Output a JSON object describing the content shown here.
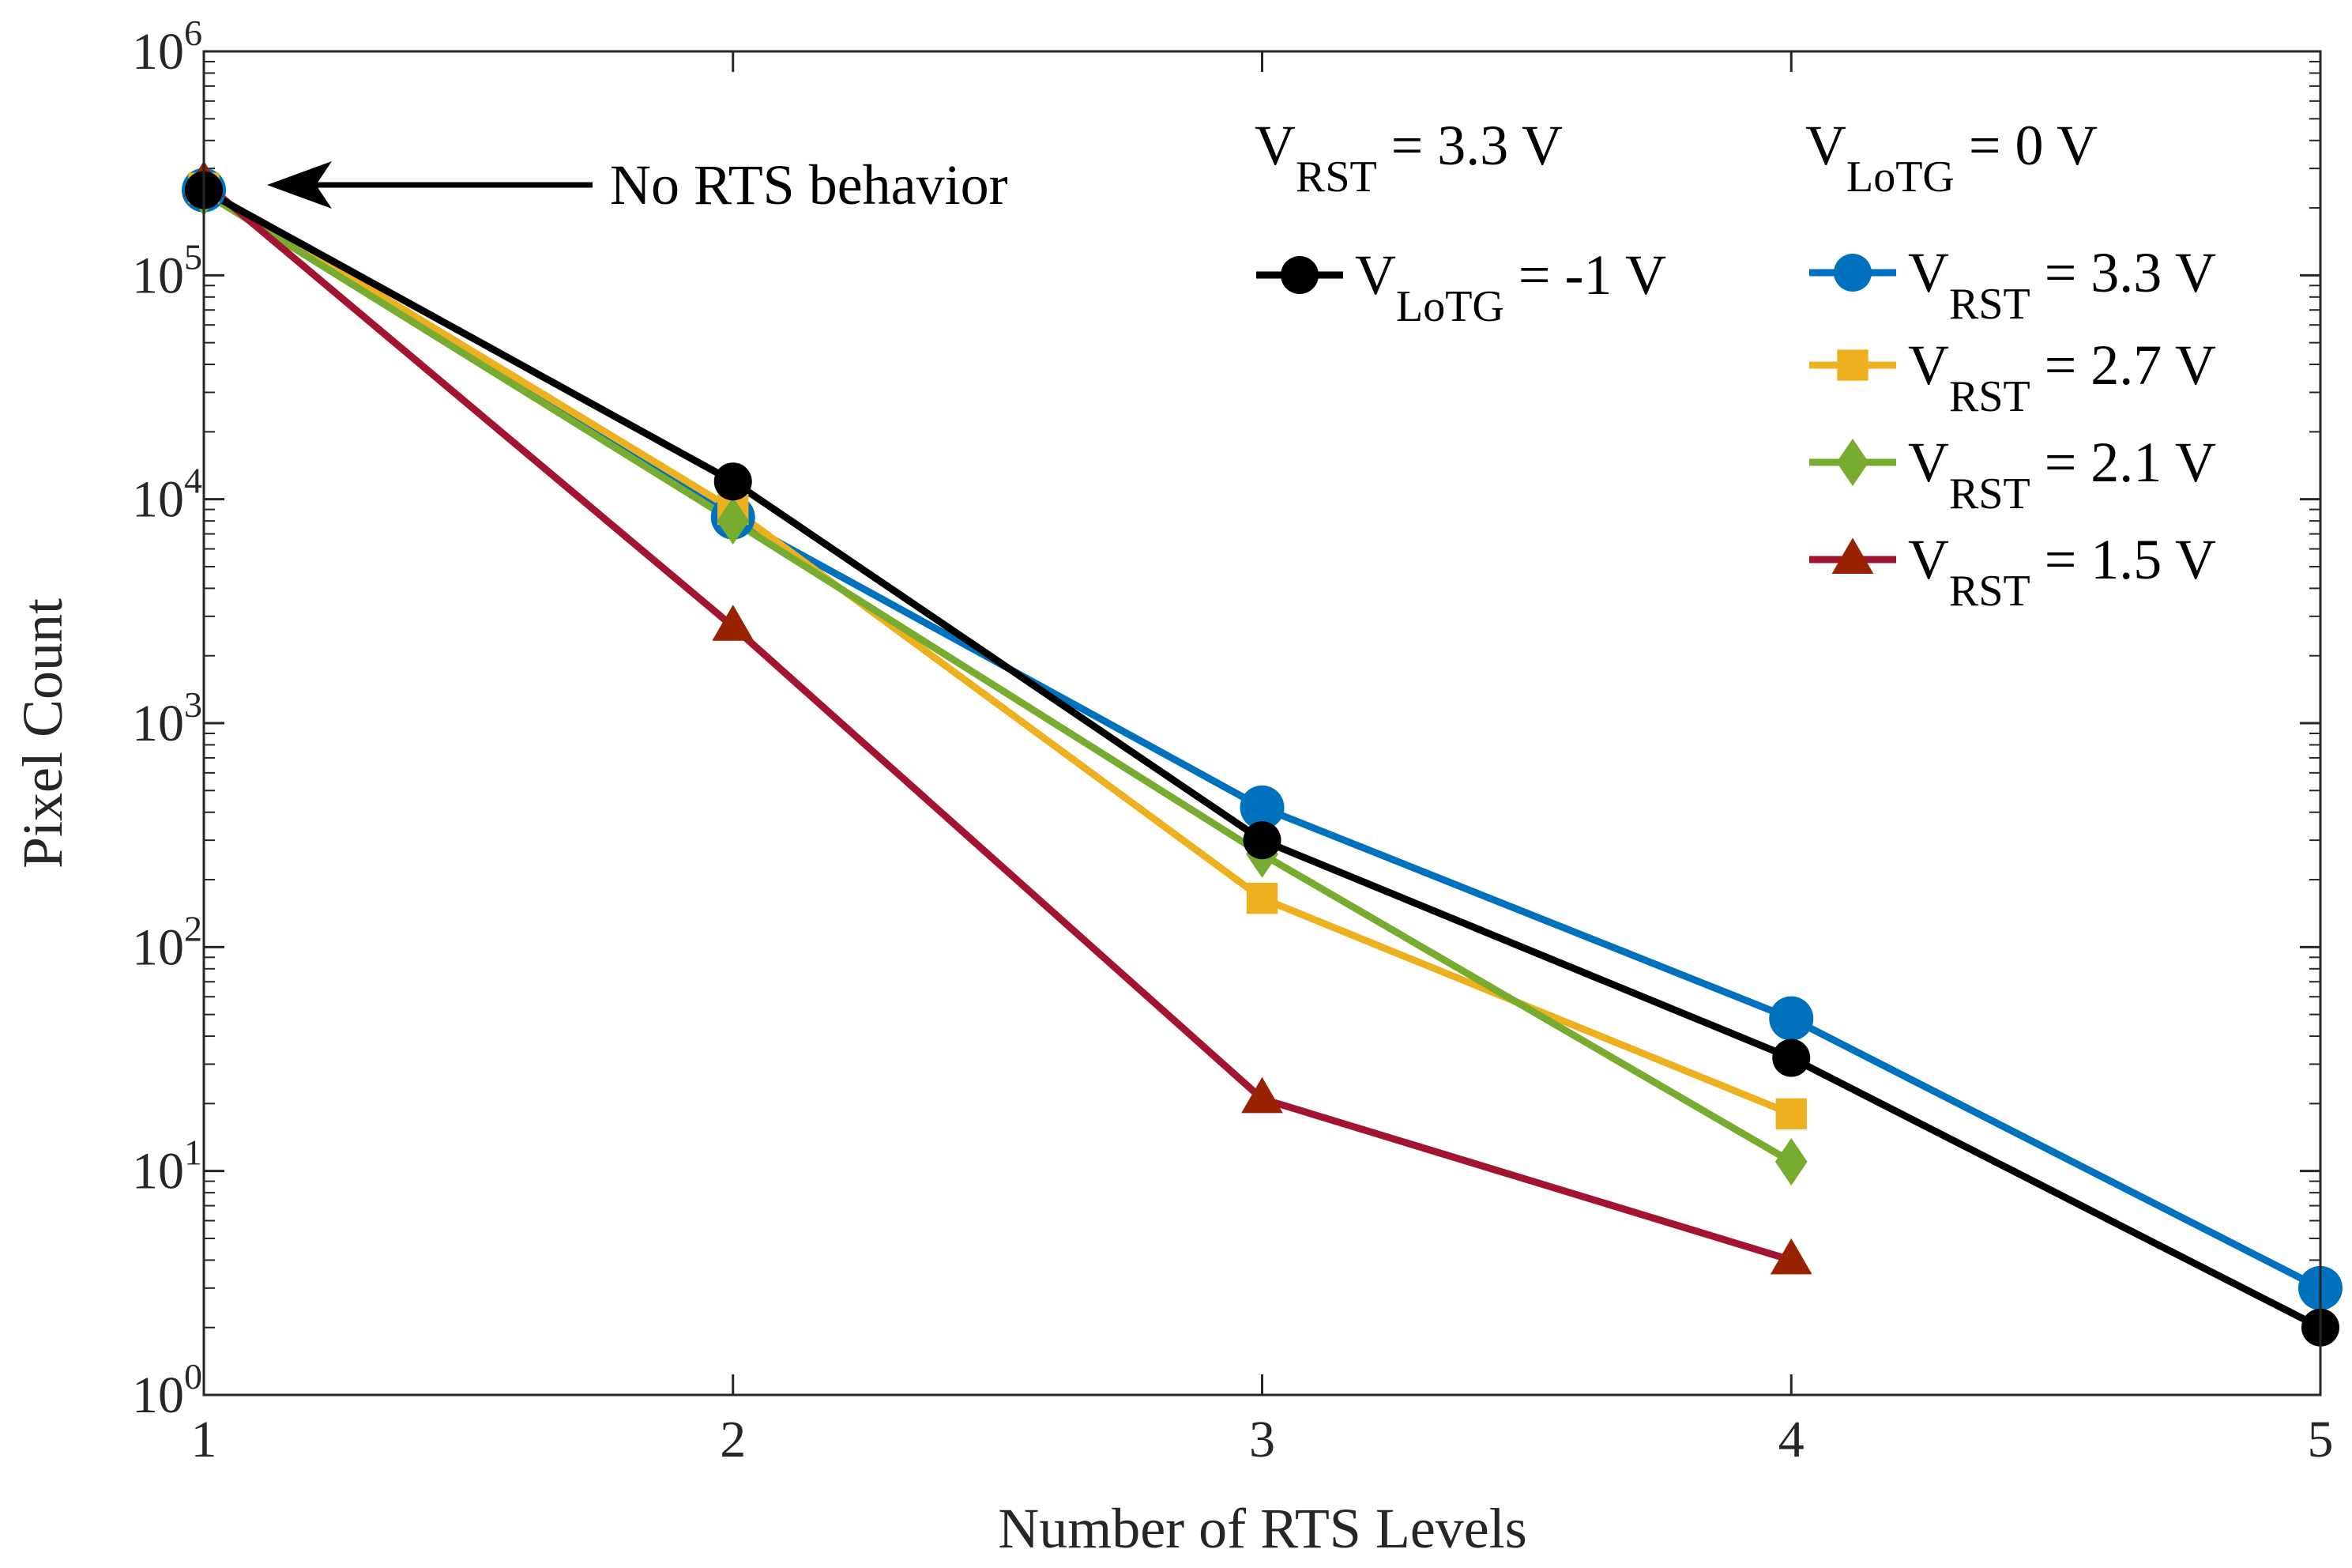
{
  "chart_data": {
    "type": "line",
    "xlabel": "Number of RTS Levels",
    "ylabel": "Pixel Count",
    "xlim": [
      1,
      5
    ],
    "ylim_log10": [
      0,
      6
    ],
    "yscale": "log",
    "x_ticks": [
      "1",
      "2",
      "3",
      "4",
      "5"
    ],
    "y_ticks": [
      {
        "base": "10",
        "exp": "0"
      },
      {
        "base": "10",
        "exp": "1"
      },
      {
        "base": "10",
        "exp": "2"
      },
      {
        "base": "10",
        "exp": "3"
      },
      {
        "base": "10",
        "exp": "4"
      },
      {
        "base": "10",
        "exp": "5"
      },
      {
        "base": "10",
        "exp": "6"
      }
    ],
    "annotation": "No RTS behavior",
    "legend_groups": [
      {
        "title": {
          "main": "V",
          "sub": "RST",
          "rest": " = 3.3 V"
        }
      },
      {
        "title": {
          "main": "V",
          "sub": "LoTG",
          "rest": " = 0 V"
        }
      }
    ],
    "series": [
      {
        "name": "VLoTG = -1 V",
        "label": {
          "main": "V",
          "sub": "LoTG",
          "rest": " = -1 V"
        },
        "group": 0,
        "color": "#000000",
        "marker": "circle",
        "x": [
          1,
          2,
          3,
          4,
          5
        ],
        "values": [
          240000,
          12000,
          300,
          32,
          2
        ]
      },
      {
        "name": "VRST = 3.3 V",
        "label": {
          "main": "V",
          "sub": "RST",
          "rest": " = 3.3 V"
        },
        "group": 1,
        "color": "#0072BD",
        "marker": "circle",
        "x": [
          1,
          2,
          3,
          4,
          5
        ],
        "values": [
          240000,
          8300,
          420,
          48,
          3
        ]
      },
      {
        "name": "VRST = 2.7 V",
        "label": {
          "main": "V",
          "sub": "RST",
          "rest": " = 2.7 V"
        },
        "group": 1,
        "color": "#EDB120",
        "marker": "square",
        "x": [
          1,
          2,
          3,
          4
        ],
        "values": [
          245000,
          9000,
          165,
          18
        ]
      },
      {
        "name": "VRST = 2.1 V",
        "label": {
          "main": "V",
          "sub": "RST",
          "rest": " = 2.1 V"
        },
        "group": 1,
        "color": "#77AC30",
        "marker": "diamond",
        "x": [
          1,
          2,
          3,
          4
        ],
        "values": [
          235000,
          8000,
          260,
          11
        ]
      },
      {
        "name": "VRST = 1.5 V",
        "label": {
          "main": "V",
          "sub": "RST",
          "rest": " = 1.5 V"
        },
        "group": 1,
        "color": "#A2142F",
        "markerColor": "#992200",
        "marker": "triangle",
        "x": [
          1,
          2,
          3,
          4
        ],
        "values": [
          260000,
          2700,
          21,
          4
        ]
      }
    ]
  }
}
